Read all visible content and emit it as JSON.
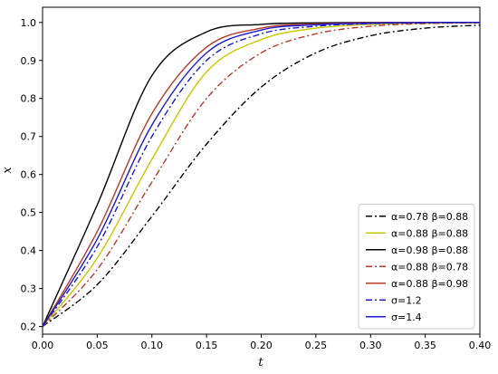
{
  "chart_data": {
    "type": "line",
    "title": "",
    "xlabel": "t",
    "ylabel": "x",
    "xlim": [
      0.0,
      0.4
    ],
    "ylim": [
      0.18,
      1.04
    ],
    "xticks": [
      "0.00",
      "0.05",
      "0.10",
      "0.15",
      "0.20",
      "0.25",
      "0.30",
      "0.35",
      "0.40"
    ],
    "yticks": [
      "0.2",
      "0.3",
      "0.4",
      "0.5",
      "0.6",
      "0.7",
      "0.8",
      "0.9",
      "1.0"
    ],
    "grid": false,
    "legend": "bottom-right",
    "series": [
      {
        "name": "α=0.78 β=0.88",
        "color": "#000000",
        "dash": "dashdot",
        "x": [
          0.0,
          0.05,
          0.1,
          0.15,
          0.2,
          0.25,
          0.3,
          0.35,
          0.4
        ],
        "y": [
          0.2,
          0.31,
          0.49,
          0.68,
          0.83,
          0.92,
          0.965,
          0.985,
          0.993
        ]
      },
      {
        "name": "α=0.88 β=0.88",
        "color": "#c8c800",
        "dash": "solid",
        "x": [
          0.0,
          0.05,
          0.1,
          0.15,
          0.2,
          0.25,
          0.3,
          0.35,
          0.4
        ],
        "y": [
          0.2,
          0.38,
          0.64,
          0.87,
          0.955,
          0.985,
          0.995,
          0.998,
          0.999
        ]
      },
      {
        "name": "α=0.98 β=0.88",
        "color": "#000000",
        "dash": "solid",
        "x": [
          0.0,
          0.05,
          0.1,
          0.15,
          0.2,
          0.25,
          0.3,
          0.35,
          0.4
        ],
        "y": [
          0.2,
          0.52,
          0.86,
          0.975,
          0.995,
          0.999,
          1.0,
          1.0,
          1.0
        ]
      },
      {
        "name": "α=0.88 β=0.78",
        "color": "#b83a2a",
        "dash": "dashdot",
        "x": [
          0.0,
          0.05,
          0.1,
          0.15,
          0.2,
          0.25,
          0.3,
          0.35,
          0.4
        ],
        "y": [
          0.2,
          0.35,
          0.58,
          0.8,
          0.92,
          0.97,
          0.99,
          0.997,
          0.999
        ]
      },
      {
        "name": "α=0.88 β=0.98",
        "color": "#b83a2a",
        "dash": "solid",
        "x": [
          0.0,
          0.05,
          0.1,
          0.15,
          0.2,
          0.25,
          0.3,
          0.35,
          0.4
        ],
        "y": [
          0.2,
          0.45,
          0.76,
          0.935,
          0.985,
          0.996,
          0.999,
          1.0,
          1.0
        ]
      },
      {
        "name": "σ=1.2",
        "color": "#1a1ad0",
        "dash": "dashdot",
        "x": [
          0.0,
          0.05,
          0.1,
          0.15,
          0.2,
          0.25,
          0.3,
          0.35,
          0.4
        ],
        "y": [
          0.2,
          0.41,
          0.7,
          0.9,
          0.97,
          0.99,
          0.997,
          0.999,
          1.0
        ]
      },
      {
        "name": "σ=1.4",
        "color": "#1a1ad0",
        "dash": "solid",
        "x": [
          0.0,
          0.05,
          0.1,
          0.15,
          0.2,
          0.25,
          0.3,
          0.35,
          0.4
        ],
        "y": [
          0.2,
          0.43,
          0.73,
          0.92,
          0.98,
          0.994,
          0.998,
          1.0,
          1.0
        ]
      }
    ]
  }
}
